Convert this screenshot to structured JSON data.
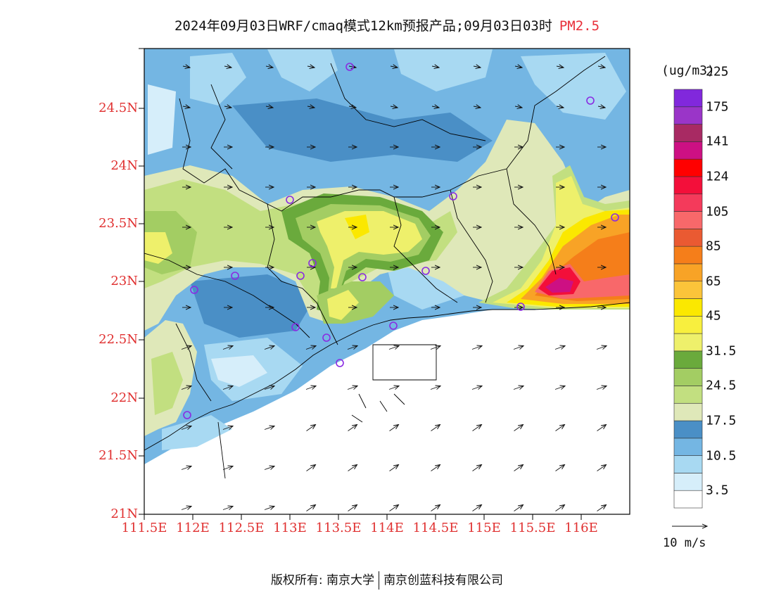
{
  "title": {
    "main": "2024年09月03日WRF/cmaq模式12km预报产品;09月03日03时",
    "variable": "PM2.5"
  },
  "axes": {
    "lat_labels": [
      "24.5N",
      "24N",
      "23.5N",
      "23N",
      "22.5N",
      "22N",
      "21.5N",
      "21N"
    ],
    "lon_labels": [
      "111.5E",
      "112E",
      "112.5E",
      "113E",
      "113.5E",
      "114E",
      "114.5E",
      "115E",
      "115.5E",
      "116E"
    ]
  },
  "colorbar": {
    "unit": "(ug/m3)",
    "labels": [
      "3.5",
      "10.5",
      "17.5",
      "24.5",
      "31.5",
      "45",
      "65",
      "85",
      "105",
      "124",
      "141",
      "175",
      "225"
    ],
    "colors": [
      "#ffffff",
      "#d6eefa",
      "#a8d9f2",
      "#74b6e3",
      "#4a8fc6",
      "#dfe8b9",
      "#c2df80",
      "#a3cd63",
      "#6aaa3c",
      "#eef06b",
      "#f8ef3e",
      "#fbe800",
      "#fbc43a",
      "#f8a326",
      "#f57e1a",
      "#ea5a32",
      "#f8686a",
      "#f43a5b",
      "#f30f3a",
      "#ff0000",
      "#cd1083",
      "#a82a63",
      "#9a35c8",
      "#8128dc"
    ]
  },
  "vector_legend": {
    "label": "10  m/s"
  },
  "footer": {
    "left": "版权所有: 南京大学",
    "right": "南京创蓝科技有限公司"
  }
}
